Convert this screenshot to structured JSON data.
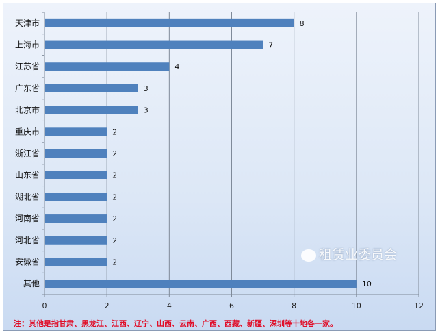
{
  "chart_data": {
    "type": "bar",
    "orientation": "horizontal",
    "categories": [
      "天津市",
      "上海市",
      "江苏省",
      "广东省",
      "北京市",
      "重庆市",
      "浙江省",
      "山东省",
      "湖北省",
      "河南省",
      "河北省",
      "安徽省",
      "其他"
    ],
    "values": [
      8,
      7,
      4,
      3,
      3,
      2,
      2,
      2,
      2,
      2,
      2,
      2,
      10
    ],
    "xlim": [
      0,
      12
    ],
    "xticks": [
      0,
      2,
      4,
      6,
      8,
      10,
      12
    ],
    "grid": "vertical",
    "bar_color": "#4f81bd",
    "data_labels": true
  },
  "note": "注：其他是指甘肃、黑龙江、江西、辽宁、山西、云南、广西、西藏、新疆、深圳等十地各一家。",
  "watermark": "租赁业委员会"
}
